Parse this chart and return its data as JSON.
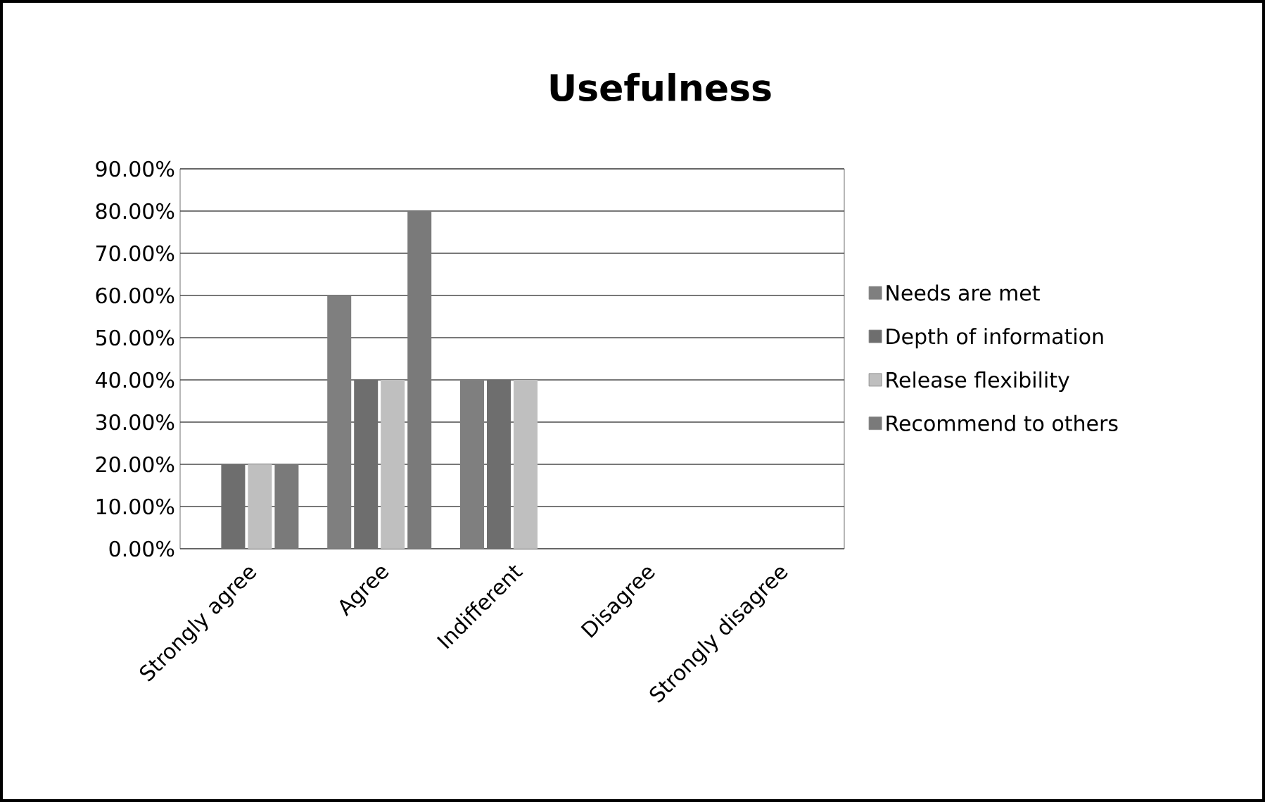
{
  "chart_data": {
    "type": "bar",
    "title": "Usefulness",
    "categories": [
      "Strongly agree",
      "Agree",
      "Indifferent",
      "Disagree",
      "Strongly disagree"
    ],
    "series": [
      {
        "name": "Needs are met",
        "color": "#7f7f7f",
        "values": [
          0,
          60,
          40,
          0,
          0
        ]
      },
      {
        "name": "Depth of information",
        "color": "#6e6e6e",
        "values": [
          20,
          40,
          40,
          0,
          0
        ]
      },
      {
        "name": "Release flexibility",
        "color": "#bfbfbf",
        "values": [
          20,
          40,
          40,
          0,
          0
        ]
      },
      {
        "name": "Recommend to others",
        "color": "#7a7a7a",
        "values": [
          20,
          80,
          0,
          0,
          0
        ]
      }
    ],
    "ylim": [
      0,
      90
    ],
    "yticks": [
      {
        "value": 0,
        "label": "0.00%"
      },
      {
        "value": 10,
        "label": "10.00%"
      },
      {
        "value": 20,
        "label": "20.00%"
      },
      {
        "value": 30,
        "label": "30.00%"
      },
      {
        "value": 40,
        "label": "40.00%"
      },
      {
        "value": 50,
        "label": "50.00%"
      },
      {
        "value": 60,
        "label": "60.00%"
      },
      {
        "value": 70,
        "label": "70.00%"
      },
      {
        "value": 80,
        "label": "80.00%"
      },
      {
        "value": 90,
        "label": "90.00%"
      }
    ],
    "grid": "y",
    "legend": "right"
  }
}
